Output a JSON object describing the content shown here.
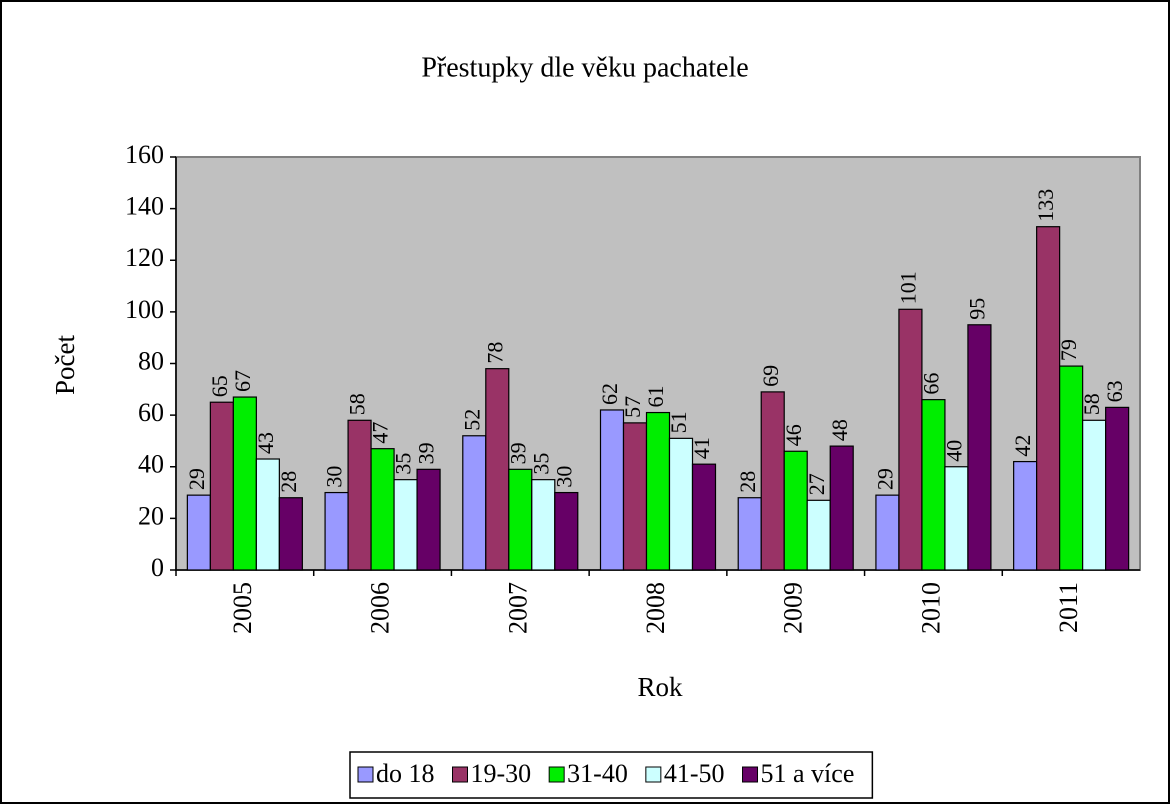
{
  "chart_data": {
    "type": "bar",
    "title": "Přestupky dle věku pachatele",
    "x_label": "Rok",
    "y_label": "Počet",
    "categories": [
      "2005",
      "2006",
      "2007",
      "2008",
      "2009",
      "2010",
      "2011"
    ],
    "series": [
      {
        "name": "do 18",
        "color": "#9999ff",
        "values": [
          29,
          30,
          52,
          62,
          28,
          29,
          42
        ]
      },
      {
        "name": "19-30",
        "color": "#993366",
        "values": [
          65,
          58,
          78,
          57,
          69,
          101,
          133
        ]
      },
      {
        "name": "31-40",
        "color": "#00ee00",
        "values": [
          67,
          47,
          39,
          61,
          46,
          66,
          79
        ]
      },
      {
        "name": "41-50",
        "color": "#ccffff",
        "values": [
          43,
          35,
          35,
          51,
          27,
          40,
          58
        ]
      },
      {
        "name": "51 a více",
        "color": "#660066",
        "values": [
          28,
          39,
          30,
          41,
          48,
          95,
          63
        ]
      }
    ],
    "ylim": [
      0,
      160
    ],
    "yticks": [
      0,
      20,
      40,
      60,
      80,
      100,
      120,
      140,
      160
    ],
    "grid": false,
    "legend": "bottom",
    "plot_background": "#c0c0c0"
  }
}
